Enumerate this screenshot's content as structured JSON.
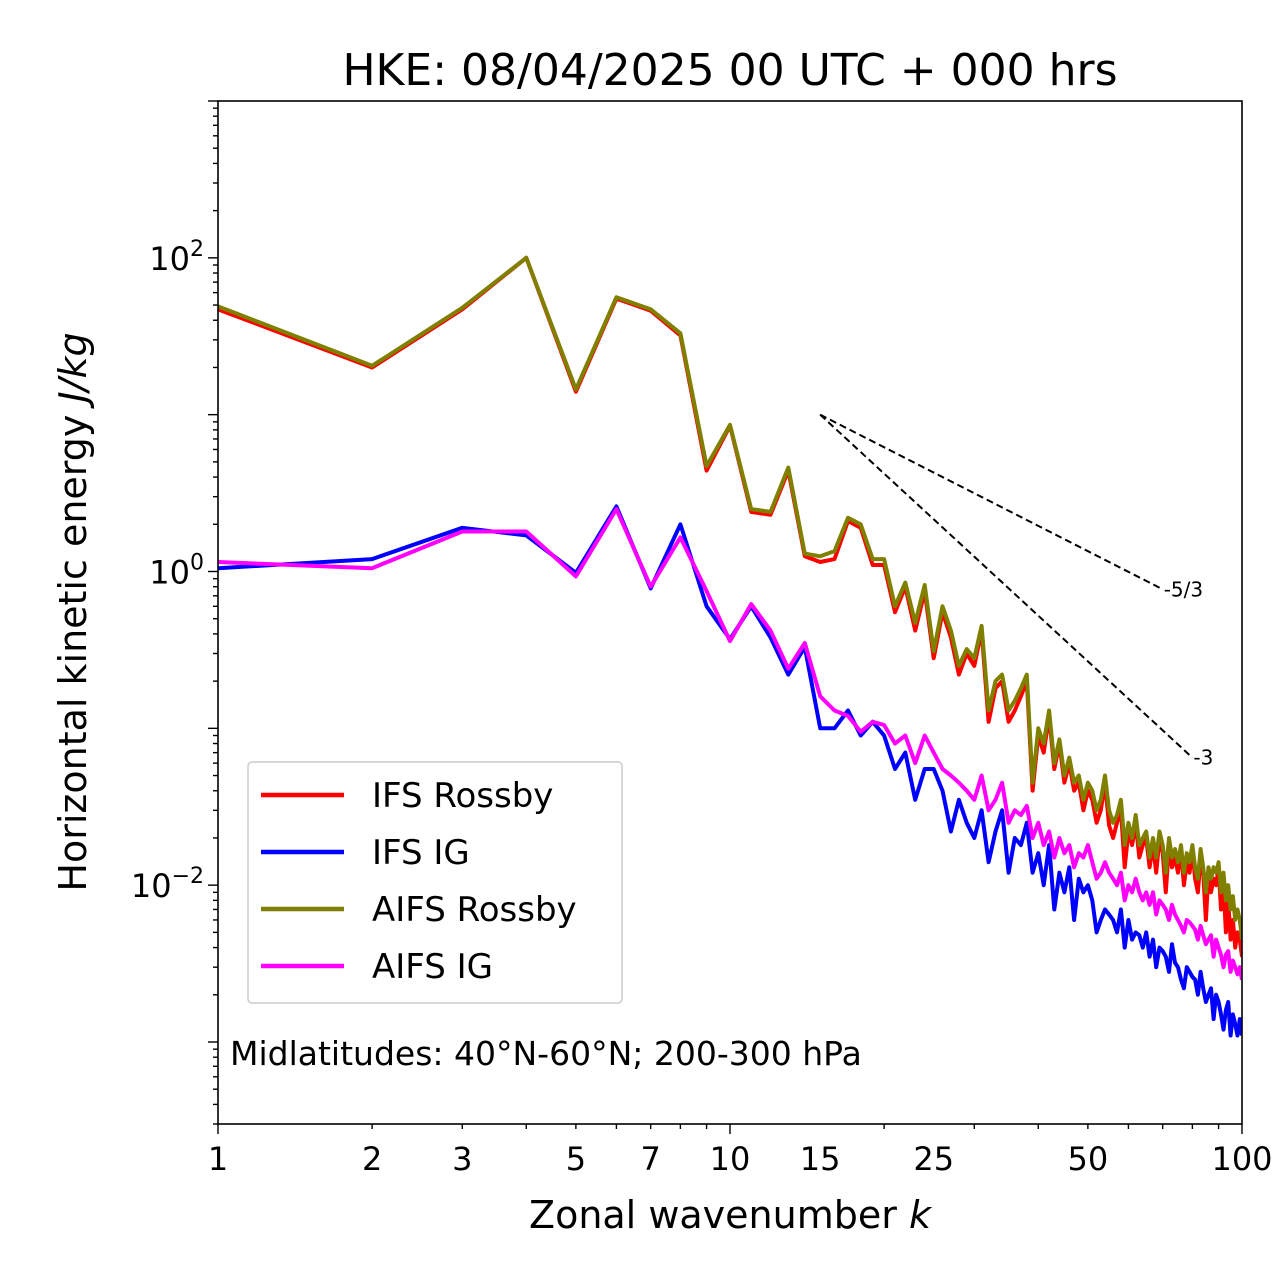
{
  "chart_data": {
    "type": "line",
    "title": "HKE: 08/04/2025 00 UTC + 000 hrs",
    "xlabel": "Zonal wavenumber k",
    "ylabel": "Horizontal kinetic energy J/kg",
    "x_scale": "log",
    "y_scale": "log",
    "xlim": [
      1,
      100
    ],
    "ylim": [
      0.0003,
      1000
    ],
    "x_ticks": [
      {
        "value": 1,
        "label": "1"
      },
      {
        "value": 2,
        "label": "2"
      },
      {
        "value": 3,
        "label": "3"
      },
      {
        "value": 5,
        "label": "5"
      },
      {
        "value": 7,
        "label": "7"
      },
      {
        "value": 10,
        "label": "10"
      },
      {
        "value": 15,
        "label": "15"
      },
      {
        "value": 25,
        "label": "25"
      },
      {
        "value": 50,
        "label": "50"
      },
      {
        "value": 100,
        "label": "100"
      }
    ],
    "y_ticks": [
      {
        "value": 100,
        "base": "10",
        "exp": "2"
      },
      {
        "value": 1,
        "base": "10",
        "exp": "0"
      },
      {
        "value": 0.01,
        "base": "10",
        "exp": "−2"
      }
    ],
    "legend_position": "lower-left",
    "annotation": "Midlatitudes: 40°N-60°N; 200-300 hPa",
    "grid": false,
    "series": [
      {
        "name": "IFS Rossby",
        "color": "#ff0000",
        "x": [
          1,
          2,
          3,
          4,
          5,
          6,
          7,
          8,
          9,
          10,
          11,
          12,
          13,
          14,
          15,
          16,
          17,
          18,
          19,
          20,
          21,
          22,
          23,
          24,
          25,
          26,
          27,
          28,
          29,
          30,
          31,
          32,
          33,
          34,
          35,
          36,
          37,
          38,
          39,
          40,
          41,
          42,
          43,
          44,
          45,
          46,
          47,
          48,
          49,
          50,
          51,
          52,
          53,
          54,
          55,
          56,
          57,
          58,
          59,
          60,
          61,
          62,
          63,
          64,
          65,
          66,
          67,
          68,
          69,
          70,
          71,
          72,
          73,
          74,
          75,
          76,
          77,
          78,
          79,
          80,
          81,
          82,
          83,
          84,
          85,
          86,
          87,
          88,
          89,
          90,
          91,
          92,
          93,
          94,
          95,
          96,
          97,
          98,
          99,
          100
        ],
        "y": [
          47,
          20,
          47,
          100,
          14,
          55,
          46,
          32,
          4.4,
          8.5,
          2.4,
          2.3,
          4.4,
          1.25,
          1.15,
          1.2,
          2.1,
          1.9,
          1.1,
          1.1,
          0.55,
          0.8,
          0.42,
          0.75,
          0.28,
          0.55,
          0.38,
          0.22,
          0.3,
          0.25,
          0.42,
          0.11,
          0.18,
          0.2,
          0.11,
          0.13,
          0.16,
          0.2,
          0.04,
          0.09,
          0.07,
          0.12,
          0.055,
          0.08,
          0.045,
          0.06,
          0.04,
          0.045,
          0.03,
          0.04,
          0.035,
          0.025,
          0.03,
          0.045,
          0.024,
          0.02,
          0.025,
          0.03,
          0.013,
          0.022,
          0.018,
          0.025,
          0.015,
          0.018,
          0.02,
          0.013,
          0.018,
          0.012,
          0.02,
          0.016,
          0.009,
          0.018,
          0.013,
          0.015,
          0.012,
          0.017,
          0.01,
          0.014,
          0.012,
          0.017,
          0.011,
          0.009,
          0.015,
          0.012,
          0.006,
          0.012,
          0.009,
          0.011,
          0.01,
          0.013,
          0.007,
          0.01,
          0.005,
          0.008,
          0.0045,
          0.006,
          0.004,
          0.005,
          0.0045,
          0.0035
        ]
      },
      {
        "name": "IFS IG",
        "color": "#0000ff",
        "x": [
          1,
          2,
          3,
          4,
          5,
          6,
          7,
          8,
          9,
          10,
          11,
          12,
          13,
          14,
          15,
          16,
          17,
          18,
          19,
          20,
          21,
          22,
          23,
          24,
          25,
          26,
          27,
          28,
          29,
          30,
          31,
          32,
          33,
          34,
          35,
          36,
          37,
          38,
          39,
          40,
          41,
          42,
          43,
          44,
          45,
          46,
          47,
          48,
          49,
          50,
          51,
          52,
          53,
          54,
          55,
          56,
          57,
          58,
          59,
          60,
          61,
          62,
          63,
          64,
          65,
          66,
          67,
          68,
          69,
          70,
          71,
          72,
          73,
          74,
          75,
          76,
          77,
          78,
          79,
          80,
          81,
          82,
          83,
          84,
          85,
          86,
          87,
          88,
          89,
          90,
          91,
          92,
          93,
          94,
          95,
          96,
          97,
          98,
          99,
          100
        ],
        "y": [
          1.05,
          1.2,
          1.9,
          1.7,
          0.98,
          2.6,
          0.78,
          2.0,
          0.6,
          0.37,
          0.6,
          0.38,
          0.22,
          0.33,
          0.1,
          0.1,
          0.13,
          0.09,
          0.11,
          0.09,
          0.055,
          0.07,
          0.035,
          0.055,
          0.055,
          0.04,
          0.022,
          0.035,
          0.025,
          0.02,
          0.03,
          0.014,
          0.022,
          0.03,
          0.012,
          0.02,
          0.018,
          0.025,
          0.012,
          0.016,
          0.01,
          0.018,
          0.007,
          0.012,
          0.009,
          0.013,
          0.006,
          0.011,
          0.009,
          0.01,
          0.008,
          0.005,
          0.006,
          0.007,
          0.0065,
          0.006,
          0.005,
          0.007,
          0.004,
          0.006,
          0.0045,
          0.005,
          0.0048,
          0.004,
          0.005,
          0.0035,
          0.0045,
          0.003,
          0.004,
          0.0038,
          0.0035,
          0.0028,
          0.0042,
          0.0032,
          0.003,
          0.0025,
          0.0022,
          0.003,
          0.0028,
          0.0026,
          0.0025,
          0.002,
          0.0028,
          0.0022,
          0.0018,
          0.002,
          0.0022,
          0.0014,
          0.002,
          0.0018,
          0.0015,
          0.0012,
          0.0016,
          0.0018,
          0.0011,
          0.0015,
          0.0013,
          0.0011,
          0.0014,
          0.0011
        ]
      },
      {
        "name": "AIFS Rossby",
        "color": "#808000",
        "x": [
          1,
          2,
          3,
          4,
          5,
          6,
          7,
          8,
          9,
          10,
          11,
          12,
          13,
          14,
          15,
          16,
          17,
          18,
          19,
          20,
          21,
          22,
          23,
          24,
          25,
          26,
          27,
          28,
          29,
          30,
          31,
          32,
          33,
          34,
          35,
          36,
          37,
          38,
          39,
          40,
          41,
          42,
          43,
          44,
          45,
          46,
          47,
          48,
          49,
          50,
          51,
          52,
          53,
          54,
          55,
          56,
          57,
          58,
          59,
          60,
          61,
          62,
          63,
          64,
          65,
          66,
          67,
          68,
          69,
          70,
          71,
          72,
          73,
          74,
          75,
          76,
          77,
          78,
          79,
          80,
          81,
          82,
          83,
          84,
          85,
          86,
          87,
          88,
          89,
          90,
          91,
          92,
          93,
          94,
          95,
          96,
          97,
          98,
          99,
          100
        ],
        "y": [
          49,
          20.5,
          48,
          100,
          14.5,
          56,
          47,
          33,
          4.7,
          8.6,
          2.5,
          2.4,
          4.6,
          1.3,
          1.25,
          1.35,
          2.2,
          2.0,
          1.2,
          1.2,
          0.6,
          0.85,
          0.47,
          0.82,
          0.31,
          0.6,
          0.42,
          0.25,
          0.32,
          0.28,
          0.45,
          0.13,
          0.2,
          0.22,
          0.13,
          0.15,
          0.18,
          0.22,
          0.045,
          0.1,
          0.08,
          0.13,
          0.06,
          0.085,
          0.05,
          0.065,
          0.045,
          0.05,
          0.035,
          0.045,
          0.04,
          0.03,
          0.035,
          0.05,
          0.03,
          0.025,
          0.028,
          0.035,
          0.018,
          0.025,
          0.02,
          0.028,
          0.018,
          0.02,
          0.022,
          0.015,
          0.02,
          0.015,
          0.022,
          0.018,
          0.012,
          0.02,
          0.015,
          0.017,
          0.014,
          0.018,
          0.012,
          0.016,
          0.014,
          0.018,
          0.013,
          0.011,
          0.017,
          0.013,
          0.009,
          0.013,
          0.011,
          0.013,
          0.012,
          0.014,
          0.009,
          0.012,
          0.008,
          0.01,
          0.007,
          0.0085,
          0.006,
          0.007,
          0.006,
          0.0045
        ]
      },
      {
        "name": "AIFS IG",
        "color": "#ff00ff",
        "x": [
          1,
          2,
          3,
          4,
          5,
          6,
          7,
          8,
          9,
          10,
          11,
          12,
          13,
          14,
          15,
          16,
          17,
          18,
          19,
          20,
          21,
          22,
          23,
          24,
          25,
          26,
          27,
          28,
          29,
          30,
          31,
          32,
          33,
          34,
          35,
          36,
          37,
          38,
          39,
          40,
          41,
          42,
          43,
          44,
          45,
          46,
          47,
          48,
          49,
          50,
          51,
          52,
          53,
          54,
          55,
          56,
          57,
          58,
          59,
          60,
          61,
          62,
          63,
          64,
          65,
          66,
          67,
          68,
          69,
          70,
          71,
          72,
          73,
          74,
          75,
          76,
          77,
          78,
          79,
          80,
          81,
          82,
          83,
          84,
          85,
          86,
          87,
          88,
          89,
          90,
          91,
          92,
          93,
          94,
          95,
          96,
          97,
          98,
          99,
          100
        ],
        "y": [
          1.15,
          1.05,
          1.8,
          1.8,
          0.93,
          2.5,
          0.8,
          1.65,
          0.75,
          0.36,
          0.62,
          0.42,
          0.24,
          0.35,
          0.16,
          0.13,
          0.12,
          0.095,
          0.11,
          0.105,
          0.08,
          0.09,
          0.06,
          0.09,
          0.07,
          0.055,
          0.05,
          0.045,
          0.04,
          0.035,
          0.05,
          0.03,
          0.035,
          0.045,
          0.025,
          0.03,
          0.028,
          0.032,
          0.02,
          0.025,
          0.018,
          0.022,
          0.015,
          0.02,
          0.016,
          0.018,
          0.013,
          0.016,
          0.015,
          0.018,
          0.014,
          0.011,
          0.012,
          0.014,
          0.012,
          0.011,
          0.01,
          0.012,
          0.008,
          0.01,
          0.009,
          0.011,
          0.009,
          0.008,
          0.009,
          0.0075,
          0.009,
          0.0065,
          0.008,
          0.0075,
          0.007,
          0.006,
          0.0075,
          0.0065,
          0.006,
          0.0055,
          0.005,
          0.006,
          0.0058,
          0.0055,
          0.0052,
          0.0045,
          0.0055,
          0.0048,
          0.0042,
          0.0045,
          0.0048,
          0.0035,
          0.0045,
          0.004,
          0.0036,
          0.003,
          0.0036,
          0.0038,
          0.0028,
          0.0033,
          0.003,
          0.0027,
          0.003,
          0.0025
        ]
      }
    ],
    "reference_lines": [
      {
        "label": "-5/3",
        "x": [
          15,
          70
        ],
        "y": [
          10,
          0.77
        ],
        "style": "dashed"
      },
      {
        "label": "-3",
        "x": [
          15,
          80
        ],
        "y": [
          10,
          0.065
        ],
        "style": "dashed"
      }
    ]
  }
}
